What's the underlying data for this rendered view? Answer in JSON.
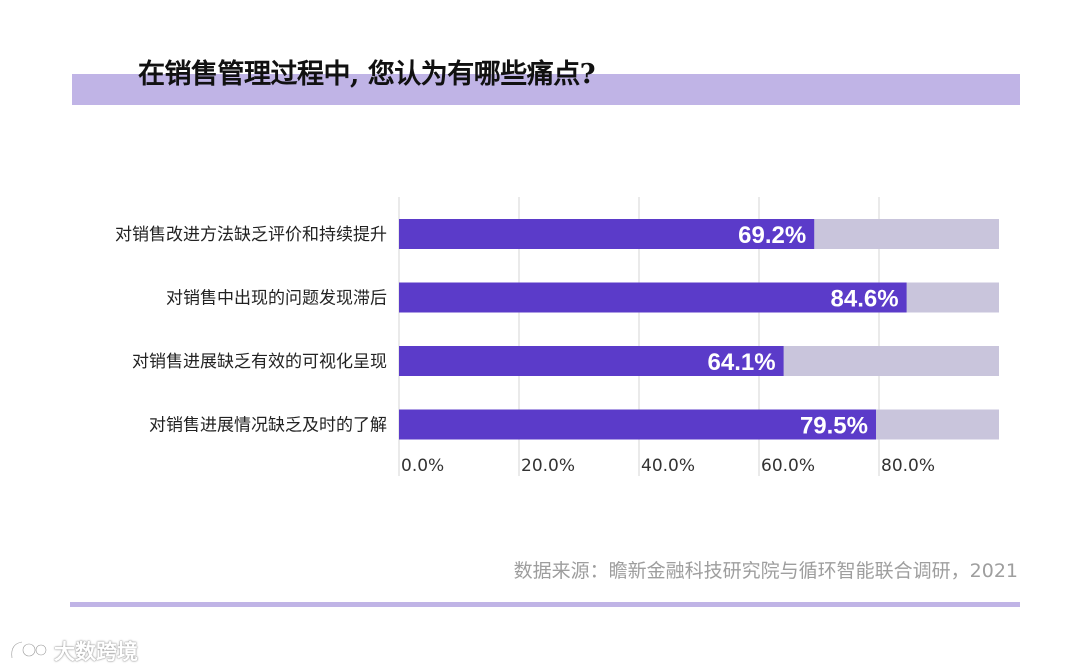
{
  "title": "在销售管理过程中, 您认为有哪些痛点?",
  "source": "数据来源：瞻新金融科技研究院与循环智能联合调研，2021",
  "watermark": "大数跨境",
  "colors": {
    "bar": "#5b3bc9",
    "track": "#c9c5dc",
    "band": "#c0b4e6"
  },
  "chart_data": {
    "type": "bar",
    "orientation": "horizontal",
    "categories": [
      "对销售改进方法缺乏评价和持续提升",
      "对销售中出现的问题发现滞后",
      "对销售进展缺乏有效的可视化呈现",
      "对销售进展情况缺乏及时的了解"
    ],
    "values": [
      69.2,
      84.6,
      64.1,
      79.5
    ],
    "data_labels": [
      "69.2%",
      "84.6%",
      "64.1%",
      "79.5%"
    ],
    "x_ticks": [
      0,
      20,
      40,
      60,
      80
    ],
    "x_tick_labels": [
      "0.0%",
      "20.0%",
      "40.0%",
      "60.0%",
      "80.0%"
    ],
    "xlim": [
      0,
      100
    ],
    "track_max": 100,
    "grid": true
  }
}
